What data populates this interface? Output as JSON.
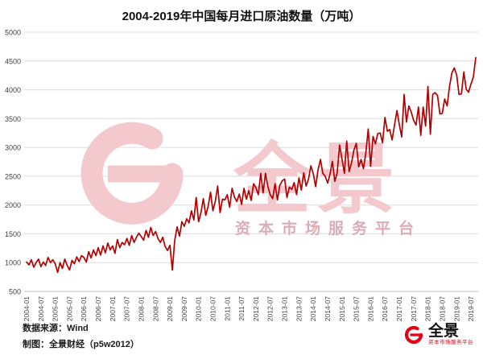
{
  "chart_data": {
    "type": "line",
    "title": "2004-2019年中国每月进口原油数量（万吨）",
    "xlabel": "",
    "ylabel": "",
    "ylim": [
      500,
      5000
    ],
    "y_ticks": [
      500,
      1000,
      1500,
      2000,
      2500,
      3000,
      3500,
      4000,
      4500,
      5000
    ],
    "grid": "horizontal",
    "legend": "none",
    "x_tick_step_months": 6,
    "x_tick_labels": [
      "2004-01",
      "2004-07",
      "2005-01",
      "2005-07",
      "2006-01",
      "2006-07",
      "2007-01",
      "2007-07",
      "2008-01",
      "2008-07",
      "2009-01",
      "2009-07",
      "2010-01",
      "2010-07",
      "2011-01",
      "2011-07",
      "2012-01",
      "2012-07",
      "2013-01",
      "2013-07",
      "2014-01",
      "2014-07",
      "2015-01",
      "2015-07",
      "2016-01",
      "2016-07",
      "2017-01",
      "2017-07",
      "2018-01",
      "2018-07",
      "2019-01",
      "2019-07"
    ],
    "series": [
      {
        "name": "中国每月进口原油数量",
        "color": "#b30000",
        "x_start": "2004-01",
        "x_interval": "monthly",
        "values": [
          1010,
          960,
          1050,
          920,
          1000,
          1060,
          930,
          1010,
          950,
          1090,
          1000,
          1050,
          980,
          830,
          1000,
          900,
          1060,
          950,
          870,
          1040,
          980,
          1100,
          1020,
          1120,
          1090,
          1010,
          1190,
          1080,
          1220,
          1120,
          1260,
          1130,
          1290,
          1170,
          1340,
          1220,
          1290,
          1160,
          1400,
          1260,
          1350,
          1310,
          1420,
          1300,
          1470,
          1350,
          1440,
          1510,
          1450,
          1390,
          1560,
          1440,
          1610,
          1470,
          1540,
          1420,
          1350,
          1440,
          1280,
          1210,
          1300,
          870,
          1380,
          1620,
          1460,
          1710,
          1630,
          1760,
          1690,
          1900,
          1740,
          2130,
          1710,
          1870,
          2110,
          1820,
          1980,
          2220,
          1900,
          2070,
          2330,
          1870,
          2100,
          2090,
          2180,
          1960,
          2290,
          2140,
          2060,
          2190,
          2010,
          2290,
          2100,
          2250,
          2080,
          2370,
          2300,
          2180,
          2550,
          2210,
          2550,
          2320,
          2180,
          2110,
          2370,
          2090,
          2340,
          2420,
          2450,
          2130,
          2310,
          2270,
          2390,
          2180,
          2470,
          2260,
          2560,
          2330,
          2450,
          2680,
          2540,
          2320,
          2610,
          2790,
          2550,
          2500,
          2380,
          2530,
          2760,
          2410,
          2560,
          3040,
          2800,
          2550,
          3110,
          2580,
          2730,
          2950,
          3070,
          2660,
          2790,
          2630,
          2910,
          3320,
          2670,
          3190,
          3060,
          3240,
          3250,
          3080,
          3520,
          3280,
          3310,
          3130,
          3390,
          3640,
          3400,
          3180,
          3920,
          3440,
          3720,
          3610,
          3470,
          3390,
          3700,
          3210,
          3700,
          3370,
          4060,
          3230,
          3920,
          3950,
          3900,
          3580,
          3590,
          3840,
          3720,
          4060,
          4290,
          4380,
          4260,
          3920,
          3930,
          4310,
          4010,
          3960,
          4100,
          4220,
          4560
        ]
      }
    ]
  },
  "watermark": {
    "brand": "全景",
    "tagline": "资本市场服务平台",
    "color_main": "#f3c9ce",
    "color_tagline": "#dcacb4"
  },
  "footer": {
    "source": "数据来源：Wind",
    "credit": "制图：全景财经（p5w2012）"
  },
  "logo": {
    "brand": "全景",
    "tagline": "资本市场服务平台",
    "accent": "#e60012"
  }
}
